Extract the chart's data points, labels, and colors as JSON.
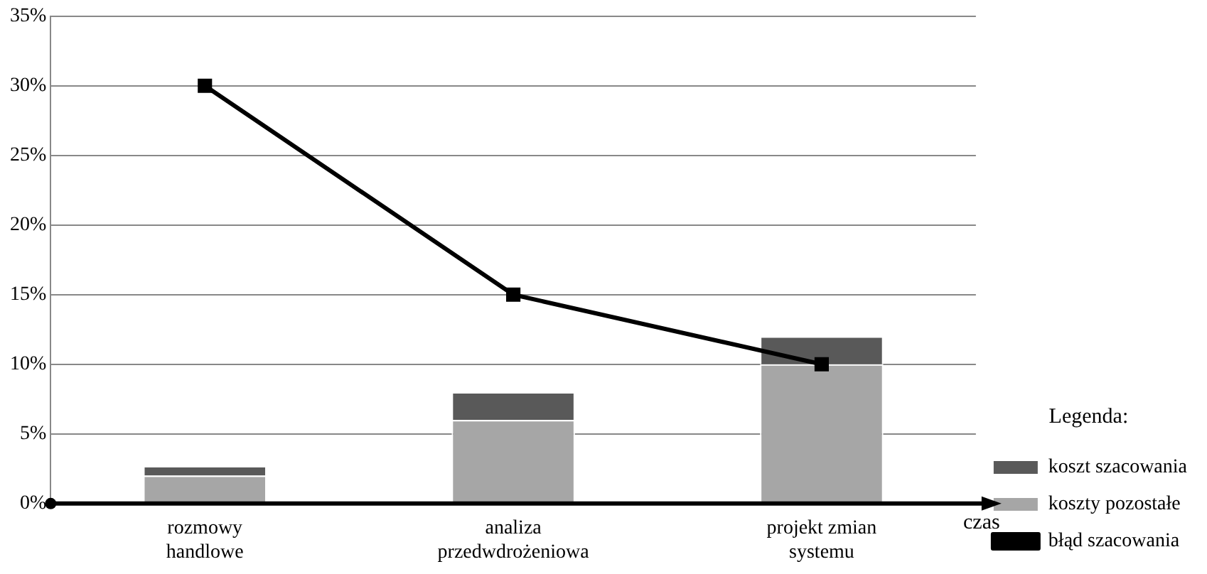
{
  "chart_data": {
    "type": "bar",
    "stacked": true,
    "xlabel": "czas",
    "legend_title": "Legenda:",
    "categories": [
      "rozmowy\nhandlowe",
      "analiza\nprzedwdrożeniowa",
      "projekt zmian\nsystemu"
    ],
    "series": [
      {
        "name": "koszty pozostałe",
        "color": "#a6a6a6",
        "values": [
          2,
          6,
          10
        ]
      },
      {
        "name": "koszt szacowania",
        "color": "#595959",
        "values": [
          0.7,
          2,
          2
        ]
      },
      {
        "name": "błąd szacowania",
        "type": "line",
        "color": "#000000",
        "values": [
          30,
          15,
          10
        ],
        "marker": "square"
      }
    ],
    "ylim": [
      0,
      35
    ],
    "yticks": [
      {
        "value": 0,
        "label": "0%"
      },
      {
        "value": 5,
        "label": "5%"
      },
      {
        "value": 10,
        "label": "10%"
      },
      {
        "value": 15,
        "label": "15%"
      },
      {
        "value": 20,
        "label": "20%"
      },
      {
        "value": 25,
        "label": "25%"
      },
      {
        "value": 30,
        "label": "30%"
      },
      {
        "value": 35,
        "label": "35%"
      }
    ],
    "grid": "y",
    "legend": "bottom right"
  }
}
